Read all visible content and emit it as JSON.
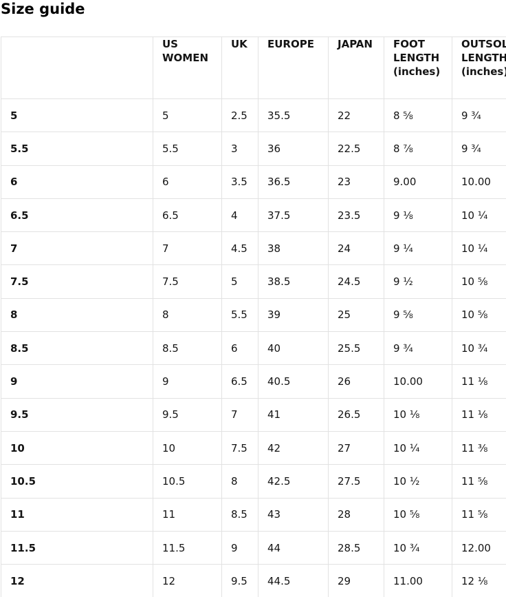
{
  "page": {
    "title": "Size guide"
  },
  "table": {
    "columns": [
      {
        "key": "size",
        "label": ""
      },
      {
        "key": "us_women",
        "label": "US WOMEN"
      },
      {
        "key": "uk",
        "label": "UK"
      },
      {
        "key": "europe",
        "label": "EUROPE"
      },
      {
        "key": "japan",
        "label": "JAPAN"
      },
      {
        "key": "foot_length_inches",
        "label": "FOOT LENGTH (inches)"
      },
      {
        "key": "outsole_length_inches",
        "label": "OUTSOLE LENGTH (inches)"
      }
    ],
    "rows": [
      {
        "values": [
          "5",
          "5",
          "2.5",
          "35.5",
          "22",
          "8 ⅝",
          "9 ¾"
        ]
      },
      {
        "values": [
          "5.5",
          "5.5",
          "3",
          "36",
          "22.5",
          "8 ⅞",
          "9 ¾"
        ]
      },
      {
        "values": [
          "6",
          "6",
          "3.5",
          "36.5",
          "23",
          "9.00",
          "10.00"
        ]
      },
      {
        "values": [
          "6.5",
          "6.5",
          "4",
          "37.5",
          "23.5",
          "9 ⅛",
          "10 ¼"
        ]
      },
      {
        "values": [
          "7",
          "7",
          "4.5",
          "38",
          "24",
          "9 ¼",
          "10 ¼"
        ]
      },
      {
        "values": [
          "7.5",
          "7.5",
          "5",
          "38.5",
          "24.5",
          "9 ½",
          "10 ⅝"
        ]
      },
      {
        "values": [
          "8",
          "8",
          "5.5",
          "39",
          "25",
          "9 ⅝",
          "10 ⅝"
        ]
      },
      {
        "values": [
          "8.5",
          "8.5",
          "6",
          "40",
          "25.5",
          "9 ¾",
          "10 ¾"
        ]
      },
      {
        "values": [
          "9",
          "9",
          "6.5",
          "40.5",
          "26",
          "10.00",
          "11 ⅛"
        ]
      },
      {
        "values": [
          "9.5",
          "9.5",
          "7",
          "41",
          "26.5",
          "10 ⅛",
          "11 ⅛"
        ]
      },
      {
        "values": [
          "10",
          "10",
          "7.5",
          "42",
          "27",
          "10 ¼",
          "11 ⅜"
        ]
      },
      {
        "values": [
          "10.5",
          "10.5",
          "8",
          "42.5",
          "27.5",
          "10 ½",
          "11 ⅝"
        ]
      },
      {
        "values": [
          "11",
          "11",
          "8.5",
          "43",
          "28",
          "10 ⅝",
          "11 ⅝"
        ]
      },
      {
        "values": [
          "11.5",
          "11.5",
          "9",
          "44",
          "28.5",
          "10 ¾",
          "12.00"
        ]
      },
      {
        "values": [
          "12",
          "12",
          "9.5",
          "44.5",
          "29",
          "11.00",
          "12 ⅛"
        ]
      }
    ]
  },
  "colors": {
    "border": "#e2e2e2",
    "text": "#141414",
    "background": "#ffffff"
  }
}
